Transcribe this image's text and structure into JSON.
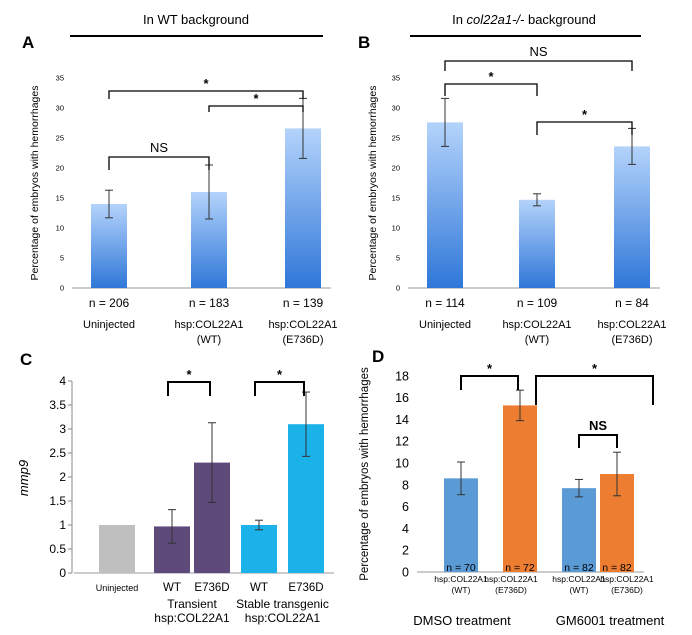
{
  "chart_data": [
    {
      "panel": "A",
      "type": "bar",
      "title": "In WT background",
      "ylabel": "Percentage of embryos with hemorrhages",
      "ylim": [
        0,
        35
      ],
      "yticks": [
        "0",
        "5",
        "10",
        "15",
        "20",
        "25",
        "30",
        "35"
      ],
      "categories": [
        "Uninjected",
        "hsp:COL22A1 (WT)",
        "hsp:COL22A1 (E736D)"
      ],
      "category_lines": [
        [
          "Uninjected"
        ],
        [
          "hsp:COL22A1",
          "(WT)"
        ],
        [
          "hsp:COL22A1",
          "(E736D)"
        ]
      ],
      "values": [
        14,
        16,
        26.6
      ],
      "errors": [
        2.3,
        4.5,
        5
      ],
      "n_labels": [
        "n = 206",
        "n = 183",
        "n = 139"
      ],
      "brackets": [
        {
          "from": 0,
          "to": 2,
          "label": "*"
        },
        {
          "from": 1,
          "to": 2,
          "label": "*"
        },
        {
          "from": 0,
          "to": 1,
          "label": "NS"
        }
      ]
    },
    {
      "panel": "B",
      "type": "bar",
      "title_prefix": "In ",
      "title_italic": "col22a1-/-",
      "title_suffix": " background",
      "ylabel": "Percentage of  embryos with hemorrhages",
      "ylim": [
        0,
        35
      ],
      "yticks": [
        "0",
        "5",
        "10",
        "15",
        "20",
        "25",
        "30",
        "35"
      ],
      "categories": [
        "Uninjected",
        "hsp:COL22A1 (WT)",
        "hsp:COL22A1 (E736D)"
      ],
      "category_lines": [
        [
          "Uninjected"
        ],
        [
          "hsp:COL22A1",
          "(WT)"
        ],
        [
          "hsp:COL22A1",
          "(E736D)"
        ]
      ],
      "values": [
        27.6,
        14.7,
        23.6
      ],
      "errors": [
        4,
        1,
        3
      ],
      "n_labels": [
        "n = 114",
        "n = 109",
        "n = 84"
      ],
      "brackets": [
        {
          "from": 0,
          "to": 2,
          "label": "NS"
        },
        {
          "from": 0,
          "to": 1,
          "label": "*"
        },
        {
          "from": 1,
          "to": 2,
          "label": "*"
        }
      ]
    },
    {
      "panel": "C",
      "type": "bar",
      "ylabel": "mmp9",
      "ylim": [
        0,
        4
      ],
      "yticks": [
        "0",
        "0.5",
        "1",
        "1.5",
        "2",
        "2.5",
        "3",
        "3.5",
        "4"
      ],
      "categories": [
        "Uninjected",
        "WT",
        "E736D",
        "WT",
        "E736D"
      ],
      "values": [
        1,
        0.97,
        2.3,
        1,
        3.1
      ],
      "errors": [
        0,
        0.35,
        0.83,
        0.1,
        0.67
      ],
      "colors": [
        "#bfbfbf",
        "#5e4a7a",
        "#5e4a7a",
        "#1ab2e8",
        "#1ab2e8"
      ],
      "groups": [
        {
          "lines": [
            "Transient",
            "hsp:COL22A1"
          ],
          "from": 1,
          "to": 2
        },
        {
          "lines": [
            "Stable transgenic",
            "hsp:COL22A1"
          ],
          "from": 3,
          "to": 4
        }
      ],
      "brackets": [
        {
          "from": 1,
          "to": 2,
          "label": "*"
        },
        {
          "from": 3,
          "to": 4,
          "label": "*"
        }
      ]
    },
    {
      "panel": "D",
      "type": "bar",
      "ylabel": "Percentage of embryos with hemorrhages",
      "ylim": [
        0,
        18
      ],
      "yticks": [
        "0",
        "2",
        "4",
        "6",
        "8",
        "10",
        "12",
        "14",
        "16",
        "18"
      ],
      "categories": [
        "hsp:COL22A1 (WT)",
        "hsp:COL22A1 (E736D)",
        "hsp:COL22A1 (WT)",
        "hsp:COL22A1 (E736D)"
      ],
      "category_lines": [
        [
          "hsp:COL22A1",
          "(WT)"
        ],
        [
          "hsp:COL22A1",
          "(E736D)"
        ],
        [
          "hsp:COL22A1",
          "(WT)"
        ],
        [
          "hsp:COL22A1",
          "(E736D)"
        ]
      ],
      "values": [
        8.6,
        15.3,
        7.7,
        9.0
      ],
      "errors": [
        1.5,
        1.4,
        0.8,
        2.0
      ],
      "colors": [
        "#5b9bd5",
        "#ed7d31",
        "#5b9bd5",
        "#ed7d31"
      ],
      "n_labels": [
        "n = 70",
        "n = 72",
        "n = 82",
        "n = 82"
      ],
      "groups": [
        {
          "label": "DMSO treatment",
          "from": 0,
          "to": 1
        },
        {
          "label": "GM6001 treatment",
          "from": 2,
          "to": 3
        }
      ],
      "brackets": [
        {
          "from": 0,
          "to": 1,
          "label": "*"
        },
        {
          "from": 1,
          "to": 3,
          "label": "*"
        },
        {
          "from": 2,
          "to": 3,
          "label": "NS"
        }
      ]
    }
  ]
}
